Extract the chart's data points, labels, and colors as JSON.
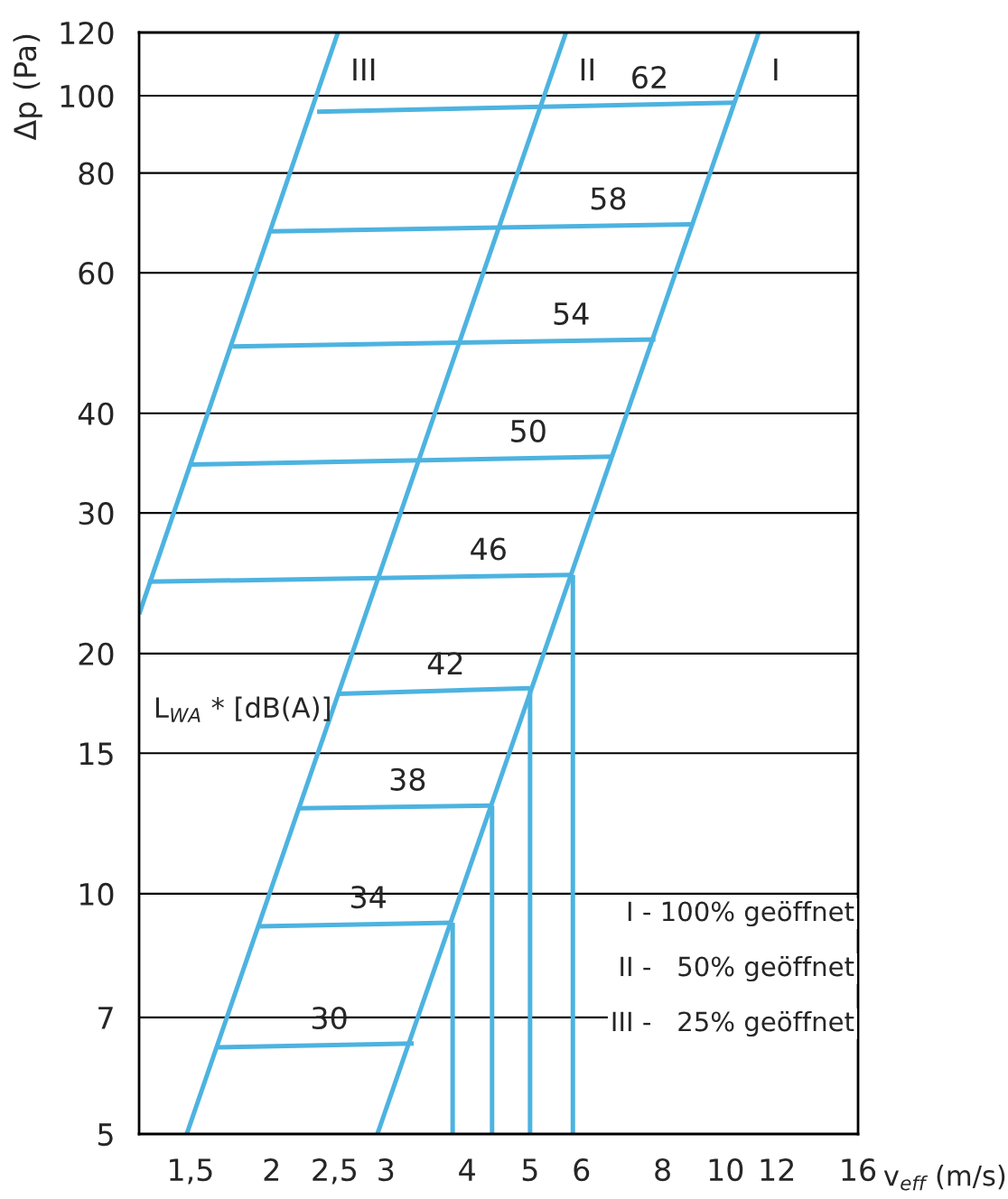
{
  "chart_data": {
    "type": "line",
    "xlabel": "v$_{eff}$ (m/s)",
    "ylabel": "Δp (Pa)",
    "log": "xy",
    "grid": "y",
    "legend": false,
    "marker": "none",
    "line_style": "solid",
    "xlim": [
      1.25,
      16
    ],
    "ylim": [
      5,
      120
    ],
    "xticks": [
      {
        "value": 1.5,
        "label": "1,5"
      },
      2,
      {
        "value": 2.5,
        "label": "2,5"
      },
      3,
      4,
      5,
      6,
      8,
      10,
      12,
      16
    ],
    "yticks": [
      5,
      7,
      10,
      15,
      20,
      30,
      40,
      60,
      80,
      100,
      120
    ],
    "series": [
      {
        "name": "I",
        "color": "#4db3e0",
        "x": [
          2.91,
          11.25
        ],
        "values": [
          5,
          120
        ]
      },
      {
        "name": "II",
        "color": "#4db3e0",
        "x": [
          1.48,
          5.68
        ],
        "values": [
          5,
          120
        ]
      },
      {
        "name": "III",
        "color": "#4db3e0",
        "x": [
          1.25,
          2.53
        ],
        "values": [
          22.4,
          120
        ]
      },
      {
        "name": "62",
        "color": "#4db3e0",
        "x": [
          2.35,
          10.3
        ],
        "values": [
          95.5,
          98
        ]
      },
      {
        "name": "58",
        "color": "#4db3e0",
        "x": [
          2.0,
          8.9
        ],
        "values": [
          67.6,
          69
        ]
      },
      {
        "name": "54",
        "color": "#4db3e0",
        "x": [
          1.74,
          7.8
        ],
        "values": [
          48.5,
          49.5
        ]
      },
      {
        "name": "50",
        "color": "#4db3e0",
        "x": [
          1.5,
          6.7
        ],
        "values": [
          34.5,
          35.3
        ]
      },
      {
        "name": "46",
        "color": "#4db3e0",
        "x": [
          1.29,
          5.82
        ],
        "values": [
          24.6,
          25.1
        ]
      },
      {
        "name": "42",
        "color": "#4db3e0",
        "x": [
          2.53,
          5.0
        ],
        "values": [
          17.8,
          18.1
        ]
      },
      {
        "name": "38",
        "color": "#4db3e0",
        "x": [
          2.2,
          4.37
        ],
        "values": [
          12.8,
          12.9
        ]
      },
      {
        "name": "34",
        "color": "#4db3e0",
        "x": [
          1.91,
          3.8
        ],
        "values": [
          9.1,
          9.2
        ]
      },
      {
        "name": "30",
        "color": "#4db3e0",
        "x": [
          1.65,
          3.31
        ],
        "values": [
          6.42,
          6.49
        ]
      },
      {
        "color": "#4db3e0",
        "x": [
          5.82,
          5.82
        ],
        "values": [
          25.1,
          5
        ]
      },
      {
        "color": "#4db3e0",
        "x": [
          5.0,
          5.0
        ],
        "values": [
          18.1,
          5
        ]
      },
      {
        "color": "#4db3e0",
        "x": [
          4.37,
          4.37
        ],
        "values": [
          12.9,
          5
        ]
      },
      {
        "color": "#4db3e0",
        "x": [
          3.8,
          3.8
        ],
        "values": [
          9.2,
          5
        ]
      }
    ],
    "annotations": [
      "L$_{WA}$ * [dB(A)]",
      "I - 100% geöffnet",
      "II -   50% geöffnet",
      "III -   25% geöffnet"
    ]
  }
}
